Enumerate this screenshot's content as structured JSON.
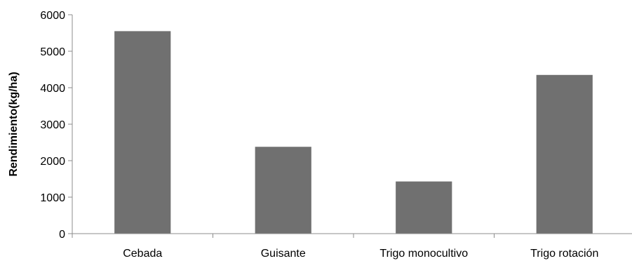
{
  "chart_data": {
    "type": "bar",
    "title": "",
    "xlabel": "",
    "ylabel": "Rendimiento(kg/ha)",
    "categories": [
      "Cebada",
      "Guisante",
      "Trigo monocultivo",
      "Trigo rotación"
    ],
    "values": [
      5550,
      2380,
      1430,
      4350
    ],
    "ylim": [
      0,
      6000
    ],
    "yticks": [
      "0",
      "1000",
      "2000",
      "3000",
      "4000",
      "5000",
      "6000"
    ],
    "grid": false,
    "legend": "none",
    "bar_color": "#707070"
  }
}
